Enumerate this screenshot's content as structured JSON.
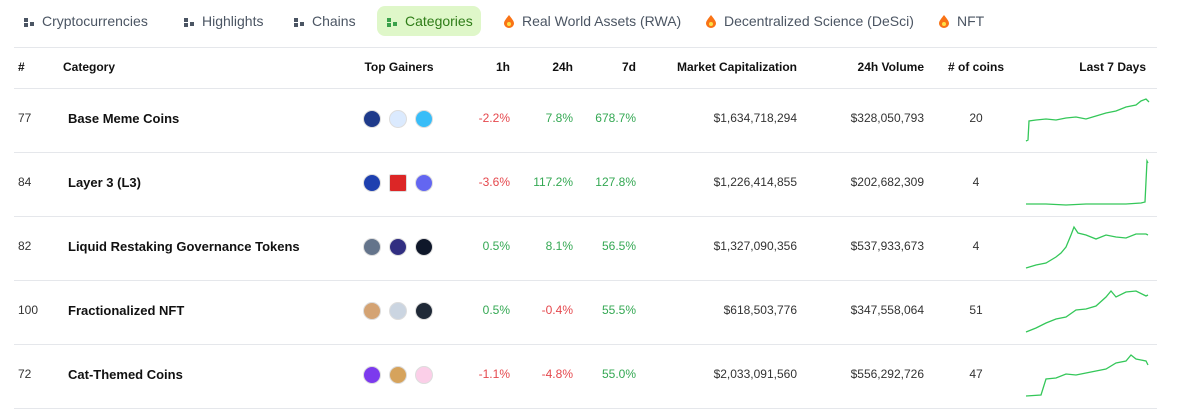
{
  "tabs": [
    "Cryptocurrencies",
    "Highlights",
    "Chains",
    "Categories",
    "Real World Assets (RWA)",
    "Decentralized Science (DeSci)",
    "NFT"
  ],
  "table": {
    "headers": [
      "#",
      "Category",
      "Top Gainers",
      "1h",
      "24h",
      "7d",
      "Market Capitalization",
      "24h Volume",
      "# of coins",
      "Last 7 Days"
    ],
    "rows": [
      [
        "77",
        "Base Meme Coins",
        "-2.2%",
        "7.8%",
        "678.7%",
        "$1,634,718,294",
        "$328,050,793",
        "20"
      ],
      [
        "84",
        "Layer 3 (L3)",
        "-3.6%",
        "117.2%",
        "127.8%",
        "$1,226,414,855",
        "$202,682,309",
        "4"
      ],
      [
        "82",
        "Liquid Restaking Governance Tokens",
        "0.5%",
        "8.1%",
        "56.5%",
        "$1,327,090,356",
        "$537,933,673",
        "4"
      ],
      [
        "100",
        "Fractionalized NFT",
        "0.5%",
        "-0.4%",
        "55.5%",
        "$618,503,776",
        "$347,558,064",
        "51"
      ],
      [
        "72",
        "Cat-Themed Coins",
        "-1.1%",
        "-4.8%",
        "55.0%",
        "$2,033,091,560",
        "$556,292,726",
        "47"
      ]
    ]
  }
}
